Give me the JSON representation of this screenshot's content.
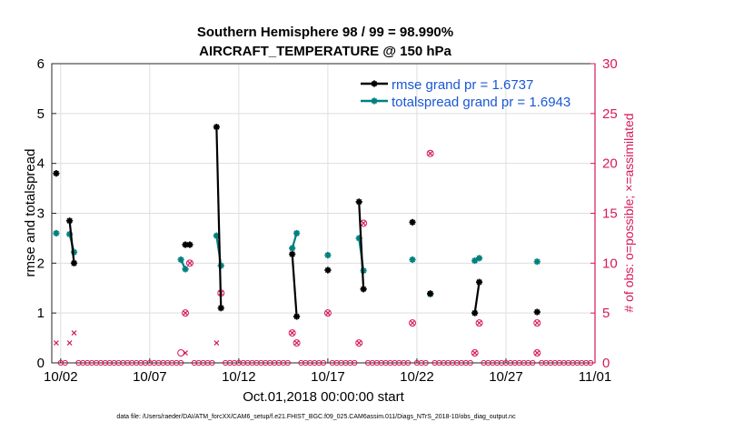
{
  "chart_data": {
    "type": "line",
    "title": "Southern Hemisphere 98 / 99 = 98.990%",
    "subtitle": "AIRCRAFT_TEMPERATURE @ 150 hPa",
    "xlabel": "Oct.01,2018 00:00:00 start",
    "ylabel": "rmse and totalspread",
    "y2label": "# of obs: o=possible; ×=assimilated",
    "footer": "data file: /Users/raeder/DAI/ATM_forcXX/CAM6_setup/f.e21.FHIST_BGC.f09_025.CAM6assim.011/Diags_NTrS_2018-10/obs_diag_output.nc",
    "x_ticks": [
      "10/02",
      "10/07",
      "10/12",
      "10/17",
      "10/22",
      "10/27",
      "11/01"
    ],
    "x_tick_values": [
      2,
      7,
      12,
      17,
      22,
      27,
      32
    ],
    "xlim": [
      1.5,
      32
    ],
    "ylim": [
      0,
      6
    ],
    "y_ticks": [
      "0",
      "1",
      "2",
      "3",
      "4",
      "5",
      "6"
    ],
    "y2lim": [
      0,
      30
    ],
    "y2_ticks": [
      "0",
      "5",
      "10",
      "15",
      "20",
      "25",
      "30"
    ],
    "grid": true,
    "legend_position": "top-right",
    "colors": {
      "rmse": "#000000",
      "totalspread": "#00807f",
      "obs": "#d6195c",
      "right_axis": "#d6195c"
    },
    "series": [
      {
        "name": "rmse grand pr = 1.6737",
        "key": "rmse",
        "segments": [
          [
            [
              1.75,
              3.8
            ]
          ],
          [
            [
              2.5,
              2.85
            ],
            [
              2.75,
              2.0
            ]
          ],
          [
            [
              9.0,
              2.37
            ],
            [
              9.25,
              2.37
            ]
          ],
          [
            [
              10.75,
              4.73
            ],
            [
              11.0,
              1.1
            ]
          ],
          [
            [
              15.0,
              2.18
            ],
            [
              15.25,
              0.93
            ]
          ],
          [
            [
              17.0,
              1.86
            ]
          ],
          [
            [
              18.75,
              3.23
            ],
            [
              19.0,
              1.48
            ]
          ],
          [
            [
              21.75,
              2.82
            ]
          ],
          [
            [
              22.75,
              1.39
            ]
          ],
          [
            [
              25.25,
              1.0
            ],
            [
              25.5,
              1.62
            ]
          ],
          [
            [
              28.75,
              1.02
            ]
          ]
        ]
      },
      {
        "name": "totalspread grand pr = 1.6943",
        "key": "totalspread",
        "segments": [
          [
            [
              1.75,
              2.6
            ]
          ],
          [
            [
              2.5,
              2.58
            ],
            [
              2.75,
              2.22
            ]
          ],
          [
            [
              8.75,
              2.07
            ],
            [
              9.0,
              1.88
            ]
          ],
          [
            [
              10.75,
              2.55
            ],
            [
              11.0,
              1.95
            ]
          ],
          [
            [
              15.0,
              2.3
            ],
            [
              15.25,
              2.6
            ]
          ],
          [
            [
              17.0,
              2.16
            ]
          ],
          [
            [
              18.75,
              2.5
            ],
            [
              19.0,
              1.85
            ]
          ],
          [
            [
              21.75,
              2.07
            ]
          ],
          [
            [
              22.75,
              1.38
            ]
          ],
          [
            [
              25.25,
              2.05
            ],
            [
              25.5,
              2.1
            ]
          ],
          [
            [
              28.75,
              2.03
            ]
          ]
        ]
      }
    ],
    "obs_possible": [
      [
        8.75,
        1
      ],
      [
        9.0,
        5
      ],
      [
        9.25,
        10
      ],
      [
        11.0,
        7
      ],
      [
        15.0,
        3
      ],
      [
        15.25,
        2
      ],
      [
        17.0,
        5
      ],
      [
        18.75,
        2
      ],
      [
        19.0,
        14
      ],
      [
        21.75,
        4
      ],
      [
        22.75,
        21
      ],
      [
        25.25,
        1
      ],
      [
        25.5,
        4
      ],
      [
        28.75,
        1
      ],
      [
        28.75,
        4
      ]
    ],
    "obs_assimilated": [
      [
        1.75,
        2
      ],
      [
        2.5,
        2
      ],
      [
        2.75,
        3
      ],
      [
        9.0,
        1
      ],
      [
        9.0,
        5
      ],
      [
        9.25,
        10
      ],
      [
        10.75,
        2
      ],
      [
        11.0,
        7
      ],
      [
        15.0,
        3
      ],
      [
        15.25,
        2
      ],
      [
        17.0,
        5
      ],
      [
        18.75,
        2
      ],
      [
        19.0,
        14
      ],
      [
        21.75,
        4
      ],
      [
        22.75,
        21
      ],
      [
        25.25,
        1
      ],
      [
        25.5,
        4
      ],
      [
        28.75,
        1
      ],
      [
        28.75,
        4
      ]
    ]
  }
}
